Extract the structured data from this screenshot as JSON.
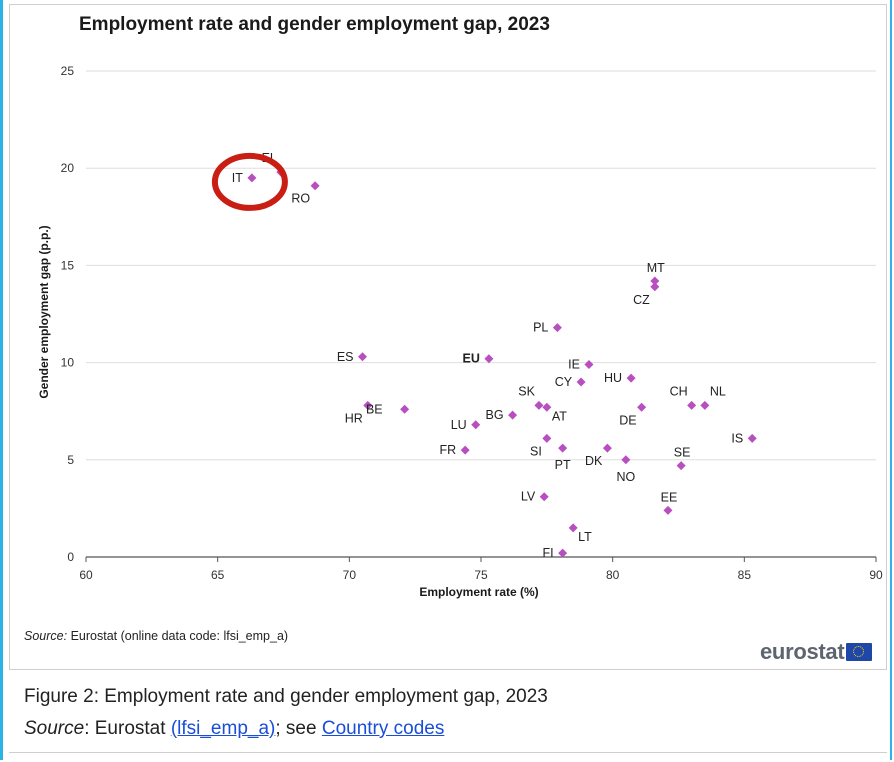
{
  "chart_data": {
    "type": "scatter",
    "title": "Employment rate and gender employment gap, 2023",
    "xlabel": "Employment rate (%)",
    "ylabel": "Gender employment gap (p.p.)",
    "xlim": [
      60,
      90
    ],
    "ylim": [
      0,
      25
    ],
    "x_ticks": [
      60,
      65,
      70,
      75,
      80,
      85,
      90
    ],
    "y_ticks": [
      0,
      5,
      10,
      15,
      20,
      25
    ],
    "grid": "horizontal",
    "marker_color": "#b84fc0",
    "highlight": {
      "label": "IT",
      "color": "#c81e14"
    },
    "points": [
      {
        "label": "IT",
        "x": 66.3,
        "y": 19.5,
        "lab": "w"
      },
      {
        "label": "EL",
        "x": 67.4,
        "y": 19.8,
        "lab": "nw"
      },
      {
        "label": "RO",
        "x": 68.7,
        "y": 19.1,
        "lab": "sw"
      },
      {
        "label": "MT",
        "x": 81.6,
        "y": 14.2,
        "lab": "n"
      },
      {
        "label": "CZ",
        "x": 81.6,
        "y": 13.9,
        "lab": "sw"
      },
      {
        "label": "PL",
        "x": 77.9,
        "y": 11.8,
        "lab": "w"
      },
      {
        "label": "ES",
        "x": 70.5,
        "y": 10.3,
        "lab": "w"
      },
      {
        "label": "EU",
        "x": 75.3,
        "y": 10.2,
        "lab": "w",
        "bold": true
      },
      {
        "label": "IE",
        "x": 79.1,
        "y": 9.9,
        "lab": "w"
      },
      {
        "label": "HU",
        "x": 80.7,
        "y": 9.2,
        "lab": "w"
      },
      {
        "label": "CY",
        "x": 78.8,
        "y": 9.0,
        "lab": "w"
      },
      {
        "label": "SK",
        "x": 77.2,
        "y": 7.8,
        "lab": "nw"
      },
      {
        "label": "AT",
        "x": 77.5,
        "y": 7.7,
        "lab": "se"
      },
      {
        "label": "DE",
        "x": 81.1,
        "y": 7.7,
        "lab": "sw"
      },
      {
        "label": "HR",
        "x": 70.7,
        "y": 7.8,
        "lab": "sw"
      },
      {
        "label": "BE",
        "x": 72.1,
        "y": 7.6,
        "lab": "wf"
      },
      {
        "label": "CH",
        "x": 83.0,
        "y": 7.8,
        "lab": "nw"
      },
      {
        "label": "NL",
        "x": 83.5,
        "y": 7.8,
        "lab": "ne"
      },
      {
        "label": "BG",
        "x": 76.2,
        "y": 7.3,
        "lab": "w"
      },
      {
        "label": "LU",
        "x": 74.8,
        "y": 6.8,
        "lab": "w"
      },
      {
        "label": "IS",
        "x": 85.3,
        "y": 6.1,
        "lab": "w"
      },
      {
        "label": "SI",
        "x": 77.5,
        "y": 6.1,
        "lab": "sw"
      },
      {
        "label": "PT",
        "x": 78.1,
        "y": 5.6,
        "lab": "s"
      },
      {
        "label": "DK",
        "x": 79.8,
        "y": 5.6,
        "lab": "sw"
      },
      {
        "label": "FR",
        "x": 74.4,
        "y": 5.5,
        "lab": "w"
      },
      {
        "label": "NO",
        "x": 80.5,
        "y": 5.0,
        "lab": "s"
      },
      {
        "label": "SE",
        "x": 82.6,
        "y": 4.7,
        "lab": "n"
      },
      {
        "label": "LV",
        "x": 77.4,
        "y": 3.1,
        "lab": "w"
      },
      {
        "label": "EE",
        "x": 82.1,
        "y": 2.4,
        "lab": "n"
      },
      {
        "label": "LT",
        "x": 78.5,
        "y": 1.5,
        "lab": "se"
      },
      {
        "label": "FI",
        "x": 78.1,
        "y": 0.2,
        "lab": "w"
      }
    ]
  },
  "source_note": {
    "prefix": "Source:",
    "text": " Eurostat (online data code: lfsi_emp_a)"
  },
  "logo": {
    "text": "eurostat"
  },
  "caption": {
    "figure": "Figure 2: Employment rate and gender employment gap, 2023",
    "source_prefix": "Source",
    "source_mid": ": Eurostat ",
    "source_link": "(lfsi_emp_a)",
    "source_after": "; see ",
    "codes_link": "Country codes"
  }
}
